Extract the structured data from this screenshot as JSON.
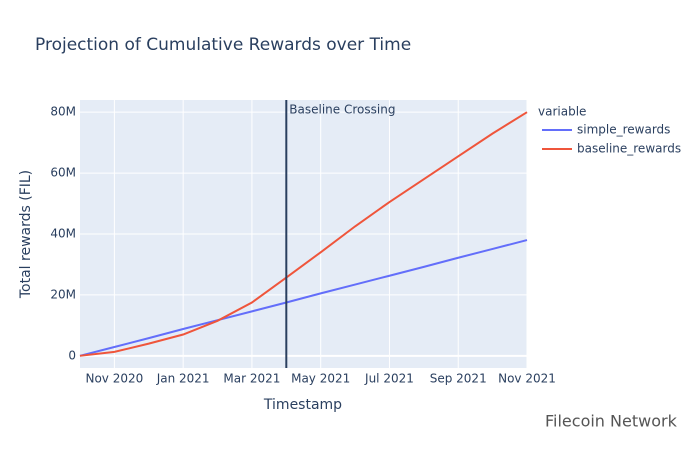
{
  "chart_data": {
    "type": "line",
    "title": "Projection of Cumulative Rewards over Time",
    "x_label": "Timestamp",
    "y_label": "Total rewards (FIL)",
    "legend_title": "variable",
    "x": [
      "2020-10",
      "2020-11",
      "2020-12",
      "2021-01",
      "2021-02",
      "2021-03",
      "2021-04",
      "2021-05",
      "2021-06",
      "2021-07",
      "2021-08",
      "2021-09",
      "2021-10",
      "2021-11"
    ],
    "series": [
      {
        "name": "simple_rewards",
        "color": "#636efa",
        "values": [
          0,
          2900000,
          5800000,
          8800000,
          11700000,
          14600000,
          17500000,
          20500000,
          23400000,
          26300000,
          29200000,
          32200000,
          35100000,
          38000000
        ]
      },
      {
        "name": "baseline_rewards",
        "color": "#ef553b",
        "values": [
          0,
          1300000,
          4000000,
          7000000,
          11500000,
          17500000,
          25700000,
          34000000,
          42500000,
          50500000,
          58000000,
          65500000,
          73000000,
          80000000
        ]
      }
    ],
    "xlim": [
      "2020-10",
      "2021-11"
    ],
    "xticks": [
      {
        "value": "2020-11",
        "label": "Nov 2020"
      },
      {
        "value": "2021-01",
        "label": "Jan 2021"
      },
      {
        "value": "2021-03",
        "label": "Mar 2021"
      },
      {
        "value": "2021-05",
        "label": "May 2021"
      },
      {
        "value": "2021-07",
        "label": "Jul 2021"
      },
      {
        "value": "2021-09",
        "label": "Sep 2021"
      },
      {
        "value": "2021-11",
        "label": "Nov 2021"
      }
    ],
    "ylim": [
      -4000000,
      84000000
    ],
    "yticks": [
      0,
      {
        "value": 20000000,
        "label": "20M"
      },
      {
        "value": 40000000,
        "label": "40M"
      },
      {
        "value": 60000000,
        "label": "60M"
      },
      {
        "value": 80000000,
        "label": "80M"
      }
    ],
    "grid": true,
    "vline": {
      "x": "2021-04",
      "label": "Baseline Crossing",
      "color": "#2a3f5f"
    },
    "watermark": "Filecoin Network"
  }
}
